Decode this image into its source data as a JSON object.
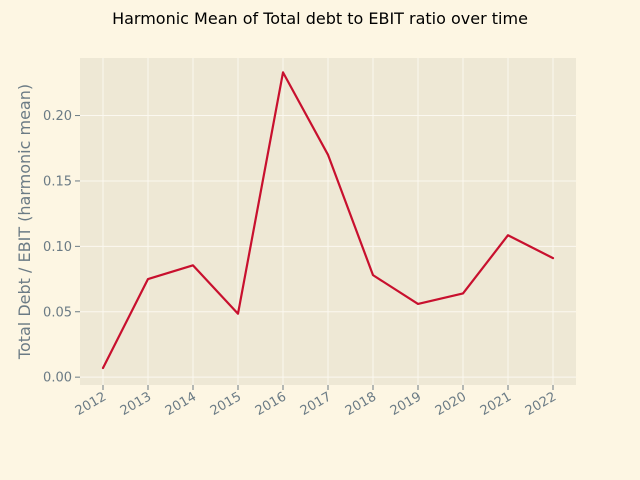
{
  "chart_data": {
    "type": "line",
    "title": "Harmonic Mean of Total debt to EBIT ratio over time",
    "xlabel": "",
    "ylabel": "Total Debt / EBIT (harmonic mean)",
    "x": [
      "2012",
      "2013",
      "2014",
      "2015",
      "2016",
      "2017",
      "2018",
      "2019",
      "2020",
      "2021",
      "2022"
    ],
    "y": [
      0.007,
      0.075,
      0.0855,
      0.0485,
      0.233,
      0.17,
      0.078,
      0.056,
      0.064,
      0.1085,
      0.091
    ],
    "ylim": [
      -0.006,
      0.244
    ],
    "yticks": [
      "0.00",
      "0.05",
      "0.10",
      "0.15",
      "0.20"
    ],
    "grid": true,
    "legend": "none",
    "colors": {
      "page_background": "#fdf6e3",
      "plot_background": "#eee8d5",
      "grid": "#fbf8f0",
      "line": "#c8102e",
      "tick_text": "#6b7b85",
      "title_text": "#000000"
    }
  }
}
